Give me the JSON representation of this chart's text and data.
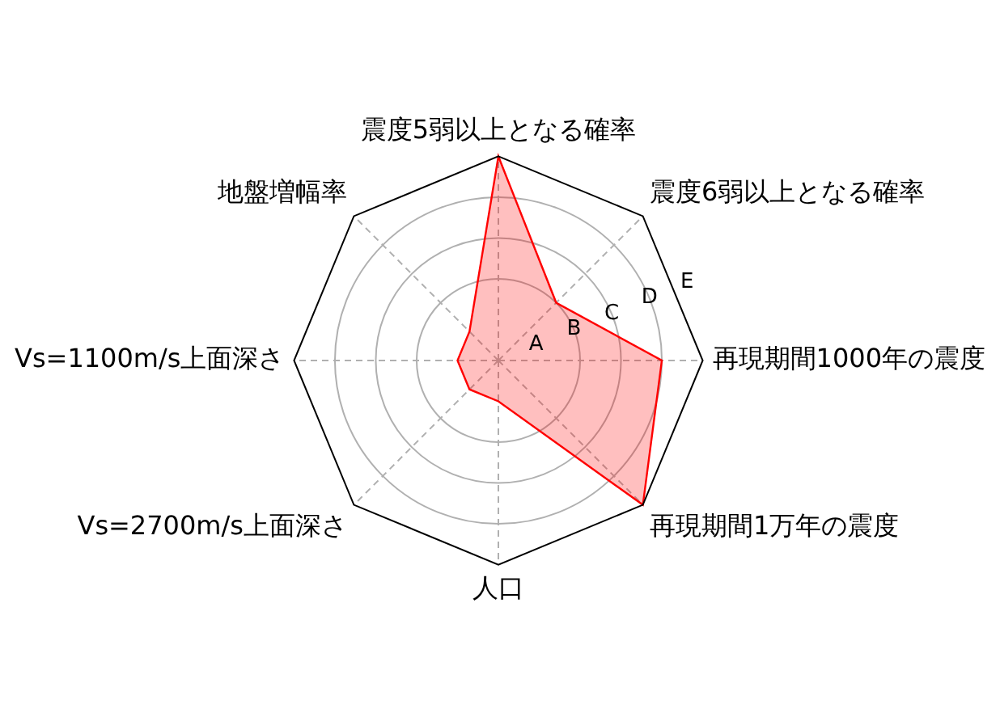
{
  "chart_data": {
    "type": "radar",
    "categories": [
      "震度5弱以上となる確率",
      "震度6弱以上となる確率",
      "再現期間1000年の震度",
      "再現期間1万年の震度",
      "人口",
      "Vs=2700m/s上面深さ",
      "Vs=1100m/s上面深さ",
      "地盤増幅率"
    ],
    "series": [
      {
        "color": "#ff0000",
        "values": [
          5,
          2,
          4,
          5,
          1,
          1,
          1,
          1
        ]
      }
    ],
    "ylim": [
      0,
      5
    ],
    "yticks": [
      {
        "value": 1,
        "label": "A"
      },
      {
        "value": 2,
        "label": "B"
      },
      {
        "value": 3,
        "label": "C"
      },
      {
        "value": 4,
        "label": "D"
      },
      {
        "value": 5,
        "label": "E"
      }
    ],
    "grid": true,
    "legend": false,
    "marker": "none",
    "line_style": "solid"
  }
}
